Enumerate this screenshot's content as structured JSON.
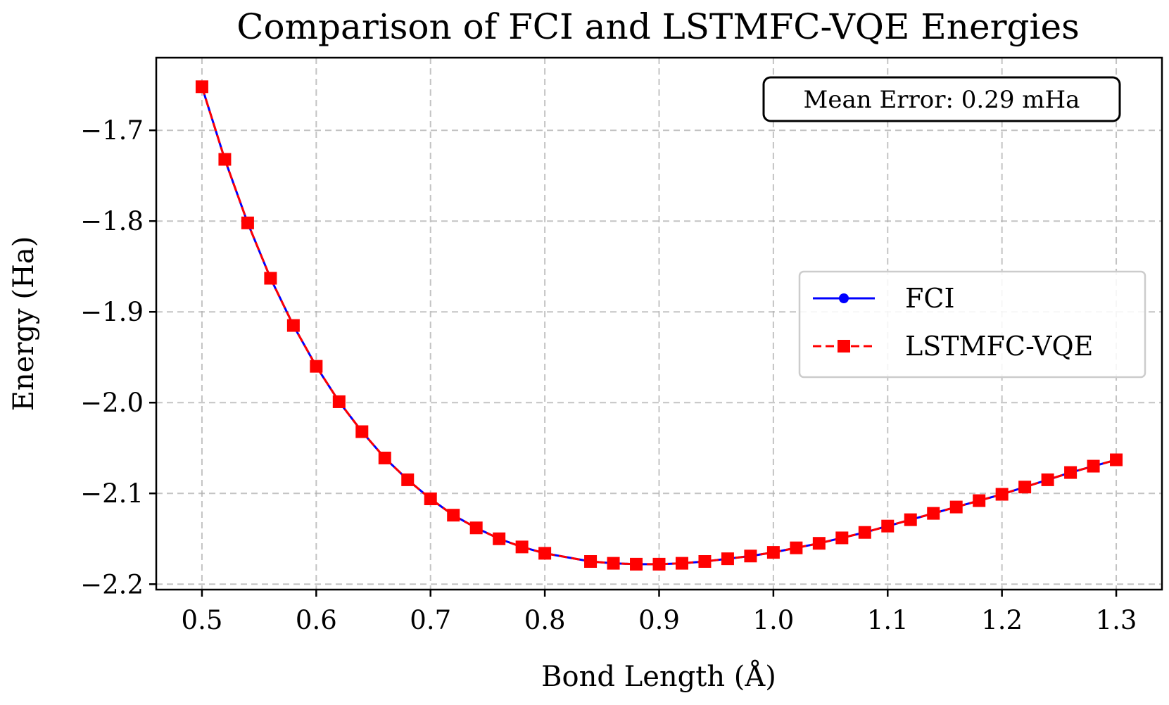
{
  "chart_data": {
    "type": "line",
    "title": "Comparison of FCI and LSTMFC-VQE Energies",
    "xlabel": "Bond Length (Å)",
    "ylabel": "Energy (Ha)",
    "xlim": [
      0.46,
      1.34
    ],
    "ylim": [
      -2.206,
      -1.62
    ],
    "grid": true,
    "legend_position": "center-right",
    "xticks": [
      0.5,
      0.6,
      0.7,
      0.8,
      0.9,
      1.0,
      1.1,
      1.2,
      1.3
    ],
    "xtick_labels": [
      "0.5",
      "0.6",
      "0.7",
      "0.8",
      "0.9",
      "1.0",
      "1.1",
      "1.2",
      "1.3"
    ],
    "yticks": [
      -1.7,
      -1.8,
      -1.9,
      -2.0,
      -2.1,
      -2.2
    ],
    "ytick_labels": [
      "−1.7",
      "−1.8",
      "−1.9",
      "−2.0",
      "−2.1",
      "−2.2"
    ],
    "x": [
      0.5,
      0.52,
      0.54,
      0.56,
      0.58,
      0.6,
      0.62,
      0.64,
      0.66,
      0.68,
      0.7,
      0.72,
      0.74,
      0.76,
      0.78,
      0.8,
      0.84,
      0.86,
      0.88,
      0.9,
      0.92,
      0.94,
      0.96,
      0.98,
      1.0,
      1.02,
      1.04,
      1.06,
      1.08,
      1.1,
      1.12,
      1.14,
      1.16,
      1.18,
      1.2,
      1.22,
      1.24,
      1.26,
      1.28,
      1.3
    ],
    "series": [
      {
        "name": "FCI",
        "color": "#0000ff",
        "linestyle": "solid",
        "marker": "circle",
        "values": [
          -1.652,
          -1.732,
          -1.802,
          -1.863,
          -1.915,
          -1.96,
          -1.999,
          -2.032,
          -2.061,
          -2.085,
          -2.106,
          -2.124,
          -2.138,
          -2.15,
          -2.159,
          -2.166,
          -2.175,
          -2.177,
          -2.178,
          -2.178,
          -2.177,
          -2.175,
          -2.172,
          -2.169,
          -2.165,
          -2.16,
          -2.155,
          -2.149,
          -2.143,
          -2.136,
          -2.129,
          -2.122,
          -2.115,
          -2.108,
          -2.101,
          -2.093,
          -2.085,
          -2.077,
          -2.07,
          -2.063
        ]
      },
      {
        "name": "LSTMFC-VQE",
        "color": "#ff0000",
        "linestyle": "dashed",
        "marker": "square",
        "values": [
          -1.652,
          -1.732,
          -1.802,
          -1.863,
          -1.915,
          -1.96,
          -1.999,
          -2.032,
          -2.061,
          -2.085,
          -2.106,
          -2.124,
          -2.138,
          -2.15,
          -2.159,
          -2.166,
          -2.175,
          -2.177,
          -2.178,
          -2.178,
          -2.177,
          -2.175,
          -2.172,
          -2.169,
          -2.165,
          -2.16,
          -2.155,
          -2.149,
          -2.143,
          -2.136,
          -2.129,
          -2.122,
          -2.115,
          -2.108,
          -2.101,
          -2.093,
          -2.085,
          -2.077,
          -2.07,
          -2.063
        ]
      }
    ],
    "annotation": "Mean Error: 0.29 mHa"
  }
}
